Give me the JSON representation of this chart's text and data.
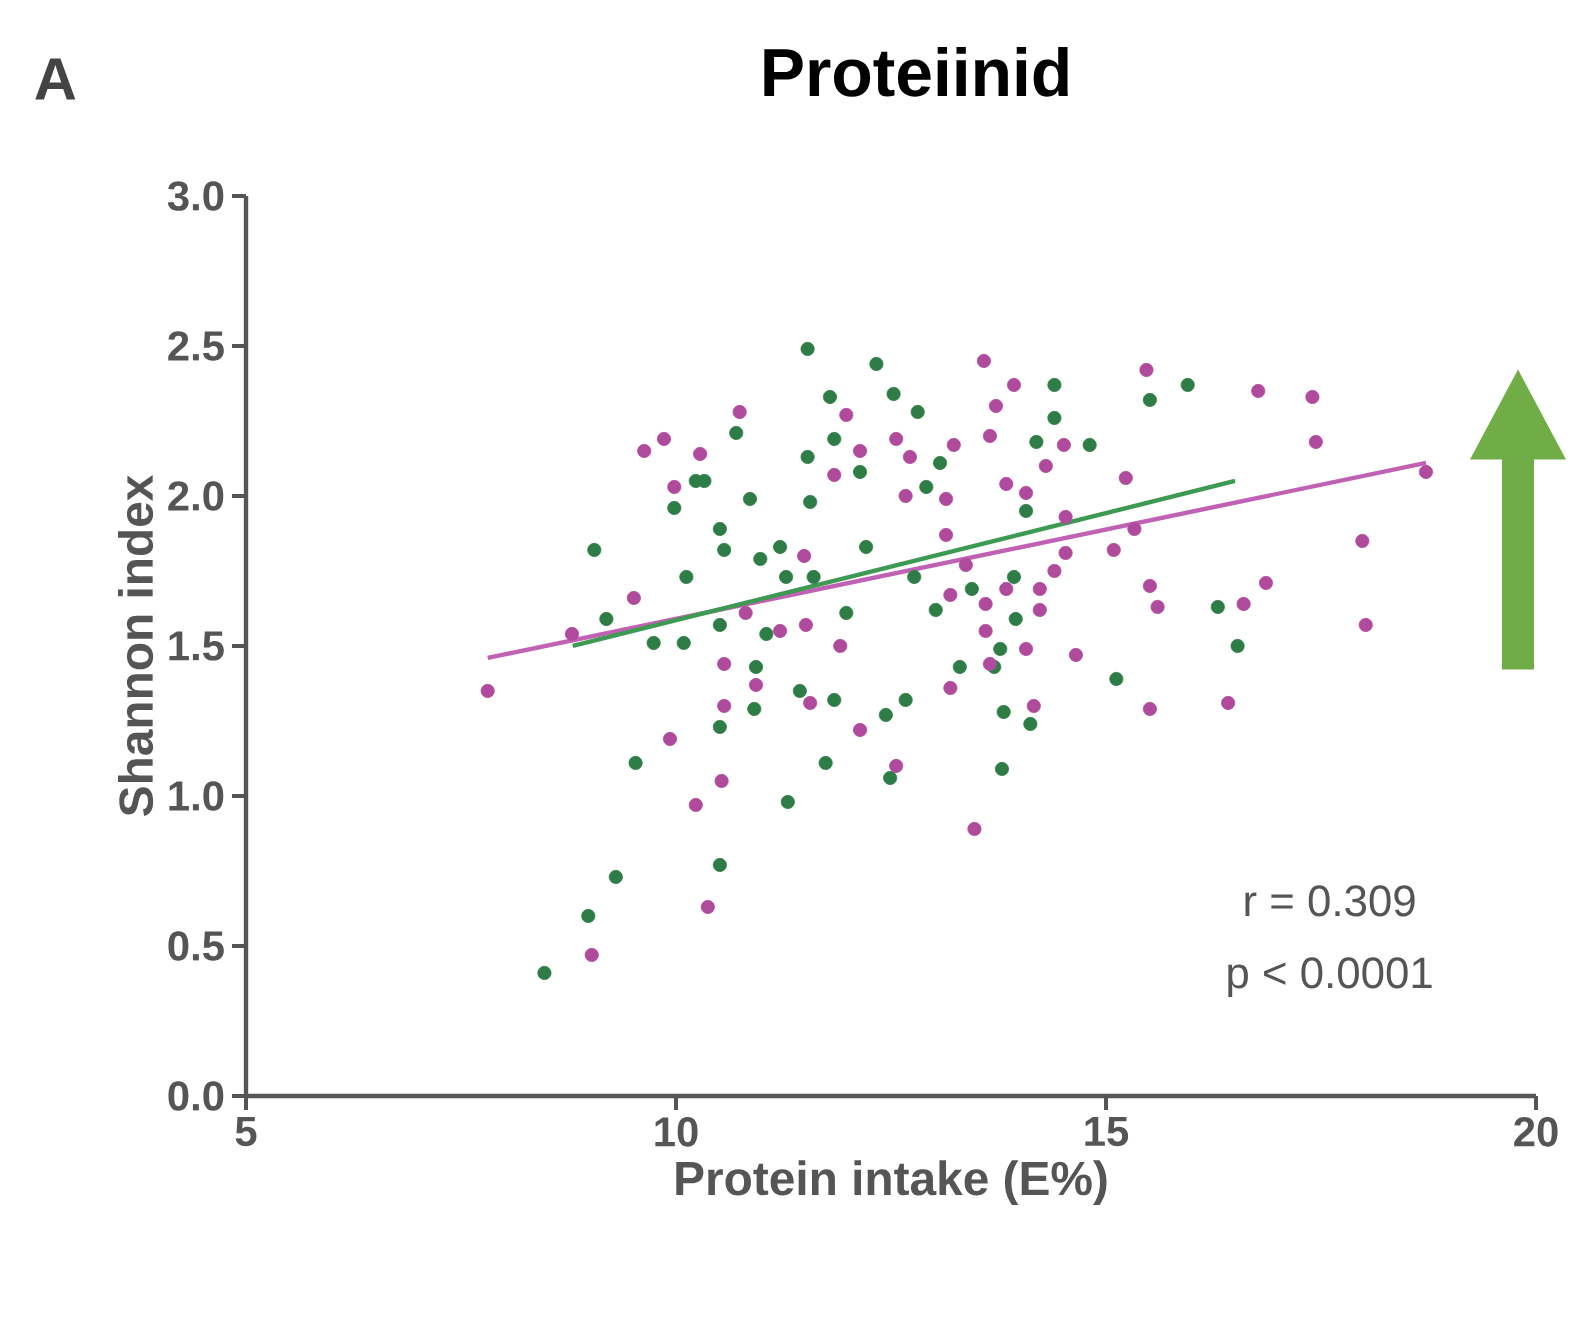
{
  "chart_data": {
    "type": "scatter",
    "title": "Proteiinid",
    "xlabel": "Protein intake (E%)",
    "ylabel": "Shannon index",
    "annotations": [
      "A",
      "r = 0.309",
      "p < 0.0001"
    ],
    "xlim": [
      5,
      20
    ],
    "xticks": [
      5,
      10,
      15,
      20
    ],
    "ylim": [
      0,
      3
    ],
    "yticks": [
      {
        "value": 0,
        "label": "0.0"
      },
      {
        "value": 0.5,
        "label": "0.5"
      },
      {
        "value": 1,
        "label": "1.0"
      },
      {
        "value": 1.5,
        "label": "1.5"
      },
      {
        "value": 2,
        "label": "2.0"
      },
      {
        "value": 2.5,
        "label": "2.5"
      },
      {
        "value": 3,
        "label": "3.0"
      }
    ],
    "marker": "circle",
    "series": [
      {
        "color": "#2f7d46",
        "x": [
          8.47,
          8.98,
          9.3,
          9.53,
          9.05,
          9.98,
          9.19,
          9.74,
          10.09,
          10.12,
          10.23,
          10.33,
          10.7,
          10.86,
          10.51,
          10.56,
          10.51,
          10.51,
          10.51,
          10.91,
          10.93,
          10.98,
          11.05,
          11.21,
          11.28,
          11.3,
          11.44,
          11.53,
          11.53,
          11.56,
          11.6,
          11.74,
          11.79,
          11.84,
          11.84,
          11.98,
          12.14,
          12.21,
          12.33,
          12.44,
          12.49,
          12.53,
          12.67,
          12.77,
          12.81,
          12.91,
          13.02,
          13.07,
          13.3,
          13.44,
          13.7,
          13.77,
          13.79,
          13.81,
          13.93,
          13.95,
          14.07,
          14.12,
          14.19,
          14.4,
          14.4,
          14.81,
          15.12,
          15.51,
          15.95,
          16.3,
          16.53
        ],
        "values": [
          0.41,
          0.6,
          0.73,
          1.11,
          1.82,
          1.96,
          1.59,
          1.51,
          1.51,
          1.73,
          2.05,
          2.05,
          2.21,
          1.99,
          1.89,
          1.82,
          1.57,
          1.23,
          0.77,
          1.29,
          1.43,
          1.79,
          1.54,
          1.83,
          1.73,
          0.98,
          1.35,
          2.49,
          2.13,
          1.98,
          1.73,
          1.11,
          2.33,
          2.19,
          1.32,
          1.61,
          2.08,
          1.83,
          2.44,
          1.27,
          1.06,
          2.34,
          1.32,
          1.73,
          2.28,
          2.03,
          1.62,
          2.11,
          1.43,
          1.69,
          1.43,
          1.49,
          1.09,
          1.28,
          1.73,
          1.59,
          1.95,
          1.24,
          2.18,
          2.37,
          2.26,
          2.17,
          1.39,
          2.32,
          2.37,
          1.63,
          1.5
        ]
      },
      {
        "color": "#b04a9c",
        "x": [
          7.81,
          8.79,
          9.02,
          9.51,
          9.63,
          9.86,
          9.93,
          9.98,
          10.23,
          10.28,
          10.37,
          10.53,
          10.56,
          10.56,
          10.74,
          10.81,
          10.93,
          11.21,
          11.49,
          11.51,
          11.56,
          11.84,
          11.91,
          11.98,
          12.14,
          12.14,
          12.56,
          12.56,
          12.67,
          12.72,
          13.14,
          13.14,
          13.19,
          13.19,
          13.23,
          13.37,
          13.47,
          13.58,
          13.6,
          13.6,
          13.65,
          13.65,
          13.72,
          13.84,
          13.84,
          13.93,
          14.07,
          14.07,
          14.16,
          14.23,
          14.23,
          14.3,
          14.4,
          14.51,
          14.53,
          14.53,
          14.65,
          15.09,
          15.23,
          15.33,
          15.47,
          15.51,
          15.51,
          15.6,
          16.42,
          16.6,
          16.77,
          16.86,
          17.4,
          17.44,
          17.98,
          18.02,
          18.72
        ],
        "values": [
          1.35,
          1.54,
          0.47,
          1.66,
          2.15,
          2.19,
          1.19,
          2.03,
          0.97,
          2.14,
          0.63,
          1.05,
          1.44,
          1.3,
          2.28,
          1.61,
          1.37,
          1.55,
          1.8,
          1.57,
          1.31,
          2.07,
          1.5,
          2.27,
          2.15,
          1.22,
          2.19,
          1.1,
          2.0,
          2.13,
          1.99,
          1.87,
          1.67,
          1.36,
          2.17,
          1.77,
          0.89,
          2.45,
          1.64,
          1.55,
          2.2,
          1.44,
          2.3,
          2.04,
          1.69,
          2.37,
          2.01,
          1.49,
          1.3,
          1.69,
          1.62,
          2.1,
          1.75,
          2.17,
          1.93,
          1.81,
          1.47,
          1.82,
          2.06,
          1.89,
          2.42,
          1.7,
          1.29,
          1.63,
          1.31,
          1.64,
          2.35,
          1.71,
          2.33,
          2.18,
          1.85,
          1.57,
          2.08
        ]
      },
      {
        "type": "line",
        "marker": "none",
        "color": "#c062b4",
        "x": [
          7.81,
          18.72
        ],
        "values": [
          1.46,
          2.11
        ]
      },
      {
        "type": "line",
        "marker": "none",
        "color": "#3d9a52",
        "x": [
          8.8,
          16.5
        ],
        "values": [
          1.5,
          2.05
        ]
      }
    ]
  }
}
